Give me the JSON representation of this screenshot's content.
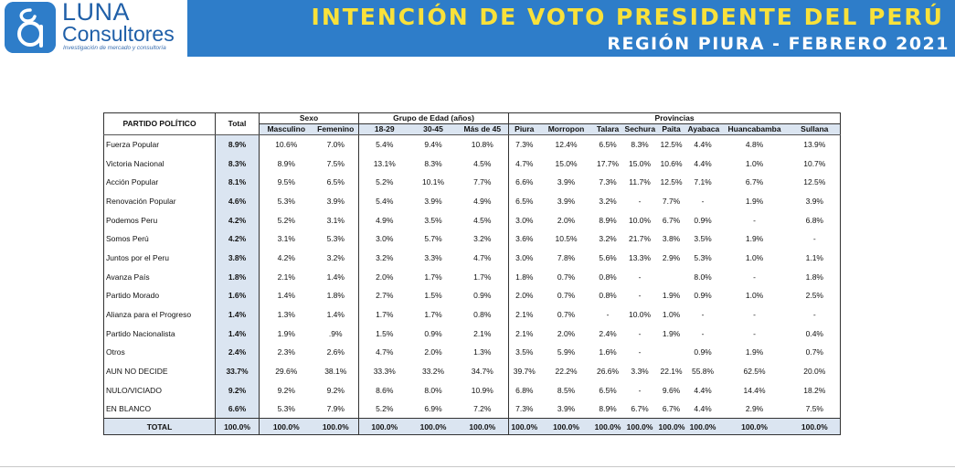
{
  "brand": {
    "name": "LUNA",
    "sub": "Consultores",
    "tagline": "Investigación de mercado y consultoría",
    "color": "#2e7dc9"
  },
  "banner": {
    "title": "INTENCIÓN DE VOTO PRESIDENTE DEL PERÚ",
    "subtitle": "REGIÓN PIURA - FEBRERO 2021",
    "bg": "#2e7dc9",
    "title_color": "#f9e13a"
  },
  "table": {
    "party_header": "PARTIDO POLÍTICO",
    "total_header": "Total",
    "groups": [
      {
        "label": "Sexo",
        "columns": [
          "Masculino",
          "Femenino"
        ]
      },
      {
        "label": "Grupo de Edad (años)",
        "columns": [
          "18-29",
          "30-45",
          "Más de 45"
        ]
      },
      {
        "label": "Provincias",
        "columns": [
          "Piura",
          "Morropon",
          "Talara",
          "Sechura",
          "Paita",
          "Ayabaca",
          "Huancabamba",
          "Sullana"
        ]
      }
    ],
    "rows": [
      {
        "party": "Fuerza Popular",
        "total": "8.9%",
        "values": [
          "10.6%",
          "7.0%",
          "5.4%",
          "9.4%",
          "10.8%",
          "7.3%",
          "12.4%",
          "6.5%",
          "8.3%",
          "12.5%",
          "4.4%",
          "4.8%",
          "13.9%"
        ]
      },
      {
        "party": "Victoria Nacional",
        "total": "8.3%",
        "values": [
          "8.9%",
          "7.5%",
          "13.1%",
          "8.3%",
          "4.5%",
          "4.7%",
          "15.0%",
          "17.7%",
          "15.0%",
          "10.6%",
          "4.4%",
          "1.0%",
          "10.7%"
        ]
      },
      {
        "party": "Acción Popular",
        "total": "8.1%",
        "values": [
          "9.5%",
          "6.5%",
          "5.2%",
          "10.1%",
          "7.7%",
          "6.6%",
          "3.9%",
          "7.3%",
          "11.7%",
          "12.5%",
          "7.1%",
          "6.7%",
          "12.5%"
        ]
      },
      {
        "party": "Renovación Popular",
        "total": "4.6%",
        "values": [
          "5.3%",
          "3.9%",
          "5.4%",
          "3.9%",
          "4.9%",
          "6.5%",
          "3.9%",
          "3.2%",
          "-",
          "7.7%",
          "-",
          "1.9%",
          "3.9%"
        ]
      },
      {
        "party": "Podemos Peru",
        "total": "4.2%",
        "values": [
          "5.2%",
          "3.1%",
          "4.9%",
          "3.5%",
          "4.5%",
          "3.0%",
          "2.0%",
          "8.9%",
          "10.0%",
          "6.7%",
          "0.9%",
          "-",
          "6.8%"
        ]
      },
      {
        "party": "Somos Perú",
        "total": "4.2%",
        "values": [
          "3.1%",
          "5.3%",
          "3.0%",
          "5.7%",
          "3.2%",
          "3.6%",
          "10.5%",
          "3.2%",
          "21.7%",
          "3.8%",
          "3.5%",
          "1.9%",
          "-"
        ]
      },
      {
        "party": "Juntos por el Peru",
        "total": "3.8%",
        "values": [
          "4.2%",
          "3.2%",
          "3.2%",
          "3.3%",
          "4.7%",
          "3.0%",
          "7.8%",
          "5.6%",
          "13.3%",
          "2.9%",
          "5.3%",
          "1.0%",
          "1.1%"
        ]
      },
      {
        "party": "Avanza País",
        "total": "1.8%",
        "values": [
          "2.1%",
          "1.4%",
          "2.0%",
          "1.7%",
          "1.7%",
          "1.8%",
          "0.7%",
          "0.8%",
          "-",
          "",
          "8.0%",
          "-",
          "1.8%"
        ]
      },
      {
        "party": "Partido Morado",
        "total": "1.6%",
        "values": [
          "1.4%",
          "1.8%",
          "2.7%",
          "1.5%",
          "0.9%",
          "2.0%",
          "0.7%",
          "0.8%",
          "-",
          "1.9%",
          "0.9%",
          "1.0%",
          "2.5%"
        ]
      },
      {
        "party": "Alianza para el Progreso",
        "total": "1.4%",
        "values": [
          "1.3%",
          "1.4%",
          "1.7%",
          "1.7%",
          "0.8%",
          "2.1%",
          "0.7%",
          "-",
          "10.0%",
          "1.0%",
          "-",
          "-",
          "-"
        ]
      },
      {
        "party": "Partido Nacionalista",
        "total": "1.4%",
        "values": [
          "1.9%",
          ".9%",
          "1.5%",
          "0.9%",
          "2.1%",
          "2.1%",
          "2.0%",
          "2.4%",
          "-",
          "1.9%",
          "-",
          "-",
          "0.4%"
        ]
      },
      {
        "party": "Otros",
        "total": "2.4%",
        "values": [
          "2.3%",
          "2.6%",
          "4.7%",
          "2.0%",
          "1.3%",
          "3.5%",
          "5.9%",
          "1.6%",
          "-",
          "",
          "0.9%",
          "1.9%",
          "0.7%"
        ]
      },
      {
        "party": "AUN NO DECIDE",
        "total": "33.7%",
        "values": [
          "29.6%",
          "38.1%",
          "33.3%",
          "33.2%",
          "34.7%",
          "39.7%",
          "22.2%",
          "26.6%",
          "3.3%",
          "22.1%",
          "55.8%",
          "62.5%",
          "20.0%"
        ]
      },
      {
        "party": "NULO/VICIADO",
        "total": "9.2%",
        "values": [
          "9.2%",
          "9.2%",
          "8.6%",
          "8.0%",
          "10.9%",
          "6.8%",
          "8.5%",
          "6.5%",
          "-",
          "9.6%",
          "4.4%",
          "14.4%",
          "18.2%"
        ]
      },
      {
        "party": "EN BLANCO",
        "total": "6.6%",
        "values": [
          "5.3%",
          "7.9%",
          "5.2%",
          "6.9%",
          "7.2%",
          "7.3%",
          "3.9%",
          "8.9%",
          "6.7%",
          "6.7%",
          "4.4%",
          "2.9%",
          "7.5%"
        ]
      }
    ],
    "footer": {
      "party": "TOTAL",
      "total": "100.0%",
      "values": [
        "100.0%",
        "100.0%",
        "100.0%",
        "100.0%",
        "100.0%",
        "100.0%",
        "100.0%",
        "100.0%",
        "100.0%",
        "100.0%",
        "100.0%",
        "100.0%",
        "100.0%"
      ]
    },
    "header_bg": "#dbe5f1"
  }
}
